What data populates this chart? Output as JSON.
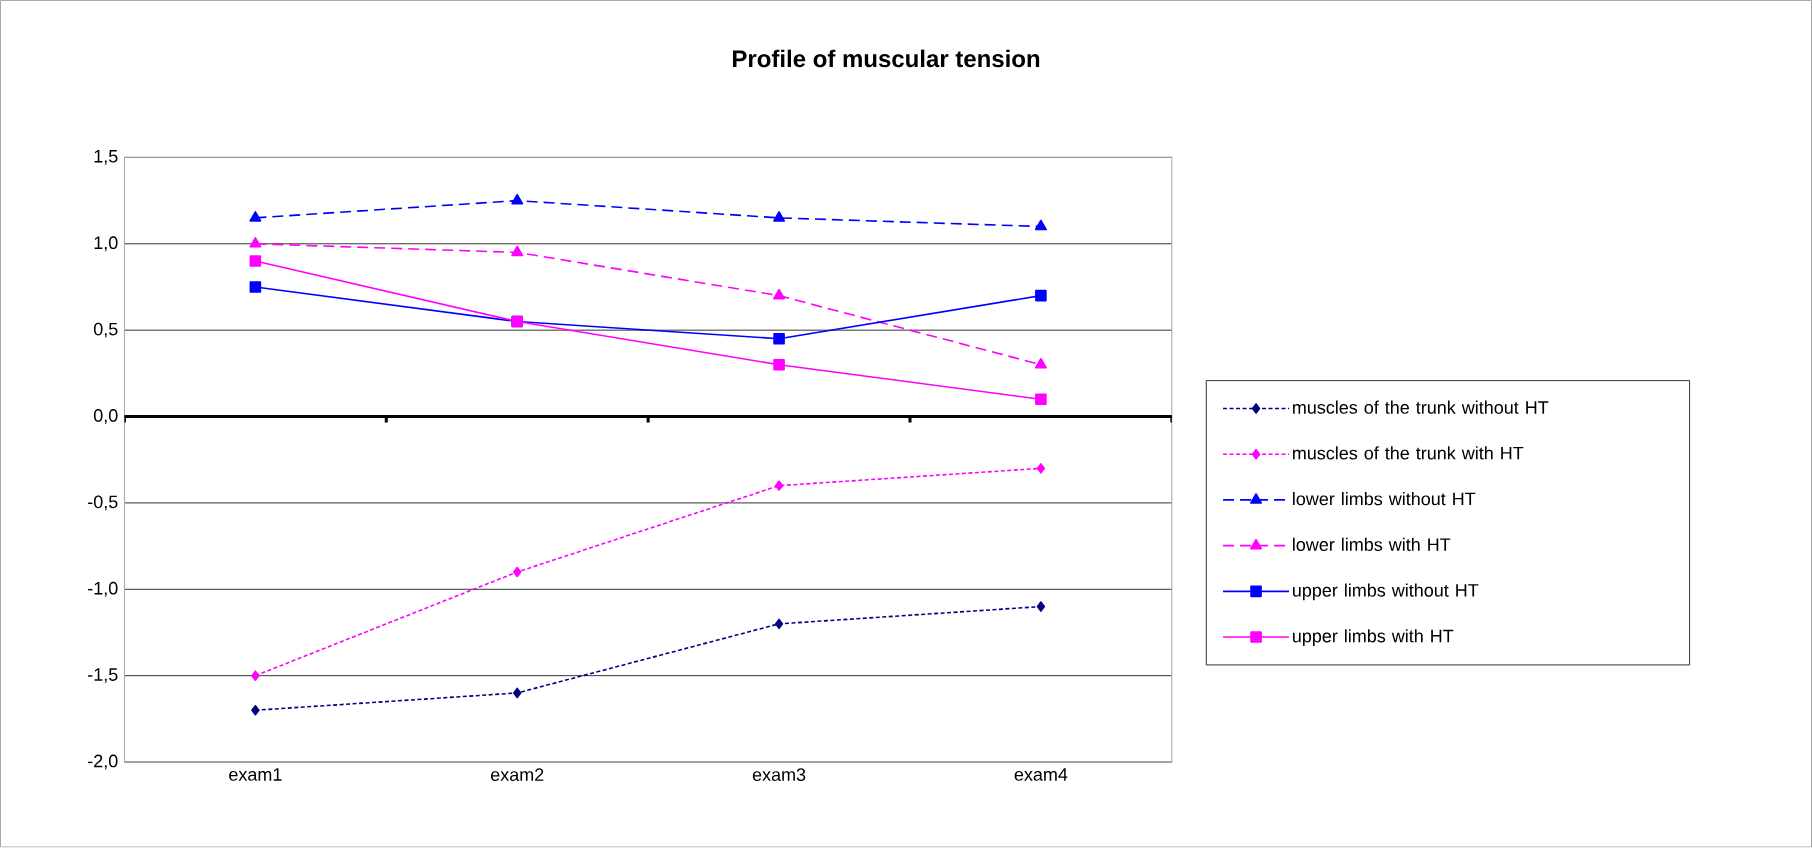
{
  "chart_data": {
    "type": "line",
    "title": "Profile of muscular tension",
    "categories": [
      "exam1",
      "exam2",
      "exam3",
      "exam4"
    ],
    "ylim": [
      -2.0,
      1.5
    ],
    "yticks": [
      {
        "value": -2.0,
        "label": "-2,0"
      },
      {
        "value": -1.5,
        "label": "-1,5"
      },
      {
        "value": -1.0,
        "label": "-1,0"
      },
      {
        "value": -0.5,
        "label": "-0,5"
      },
      {
        "value": 0.0,
        "label": "0,0"
      },
      {
        "value": 0.5,
        "label": "0,5"
      },
      {
        "value": 1.0,
        "label": "1,0"
      },
      {
        "value": 1.5,
        "label": "1,5"
      }
    ],
    "grid": "y",
    "legend": "right",
    "series": [
      {
        "name": "muscles of the trunk  without HT",
        "color": "#000080",
        "marker": "diamond",
        "line_style": "dotted",
        "values": [
          -1.7,
          -1.6,
          -1.2,
          -1.1
        ]
      },
      {
        "name": "muscles of the trunk  with HT",
        "color": "#ff00ff",
        "marker": "diamond",
        "line_style": "dotted",
        "values": [
          -1.5,
          -0.9,
          -0.4,
          -0.3
        ]
      },
      {
        "name": "lower limbs without HT",
        "color": "#0000ff",
        "marker": "triangle",
        "line_style": "dashed",
        "values": [
          1.15,
          1.25,
          1.15,
          1.1
        ]
      },
      {
        "name": "lower limbs with HT",
        "color": "#ff00ff",
        "marker": "triangle",
        "line_style": "dashed",
        "values": [
          1.0,
          0.95,
          0.7,
          0.3
        ]
      },
      {
        "name": "upper limbs without HT",
        "color": "#0000ff",
        "marker": "square",
        "line_style": "solid",
        "values": [
          0.75,
          0.55,
          0.45,
          0.7
        ]
      },
      {
        "name": "upper limbs with HT",
        "color": "#ff00ff",
        "marker": "square",
        "line_style": "solid",
        "values": [
          0.9,
          0.55,
          0.3,
          0.1
        ]
      }
    ]
  }
}
